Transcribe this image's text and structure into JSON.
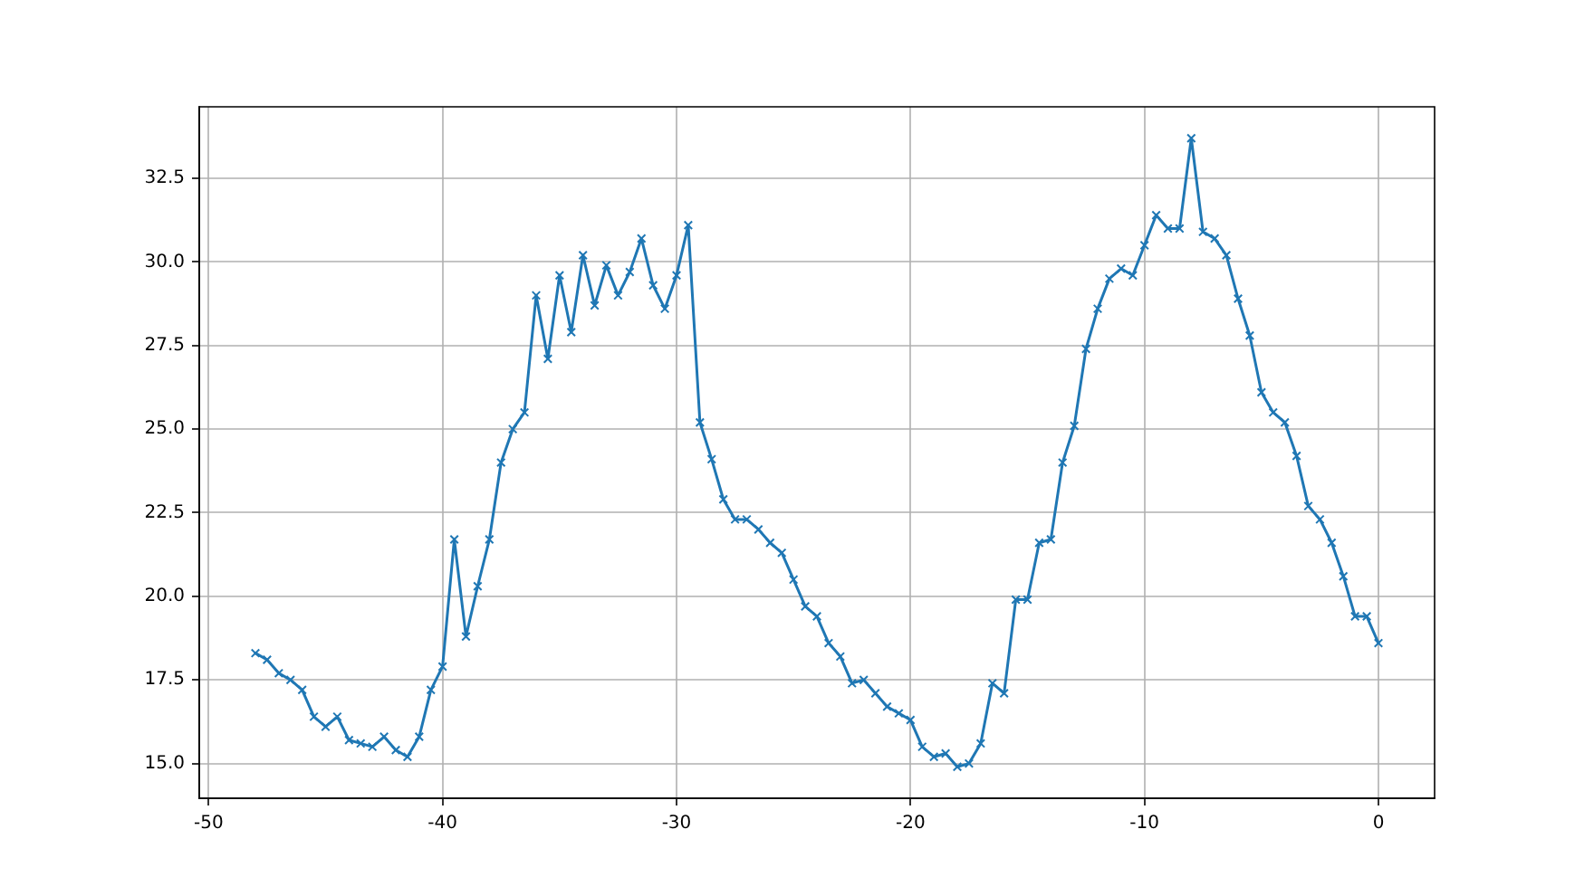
{
  "chart_data": {
    "type": "line",
    "x": [
      -48,
      -47.5,
      -47,
      -46.5,
      -46,
      -45.5,
      -45,
      -44.5,
      -44,
      -43.5,
      -43,
      -42.5,
      -42,
      -41.5,
      -41,
      -40.5,
      -40,
      -39.5,
      -39,
      -38.5,
      -38,
      -37.5,
      -37,
      -36.5,
      -36,
      -35.5,
      -35,
      -34.5,
      -34,
      -33.5,
      -33,
      -32.5,
      -32,
      -31.5,
      -31,
      -30.5,
      -30,
      -29.5,
      -29,
      -28.5,
      -28,
      -27.5,
      -27,
      -26.5,
      -26,
      -25.5,
      -25,
      -24.5,
      -24,
      -23.5,
      -23,
      -22.5,
      -22,
      -21.5,
      -21,
      -20.5,
      -20,
      -19.5,
      -19,
      -18.5,
      -18,
      -17.5,
      -17,
      -16.5,
      -16,
      -15.5,
      -15,
      -14.5,
      -14,
      -13.5,
      -13,
      -12.5,
      -12,
      -11.5,
      -11,
      -10.5,
      -10,
      -9.5,
      -9,
      -8.5,
      -8,
      -7.5,
      -7,
      -6.5,
      -6,
      -5.5,
      -5,
      -4.5,
      -4,
      -3.5,
      -3,
      -2.5,
      -2,
      -1.5,
      -1,
      -0.5,
      0
    ],
    "series": [
      {
        "color": "#1f77b4",
        "values": [
          18.3,
          18.1,
          17.7,
          17.5,
          17.2,
          16.4,
          16.1,
          16.4,
          15.7,
          15.6,
          15.5,
          15.8,
          15.4,
          15.2,
          15.8,
          17.2,
          17.9,
          21.7,
          18.8,
          20.3,
          21.7,
          24.0,
          25.0,
          25.5,
          29.0,
          27.1,
          29.6,
          27.9,
          30.2,
          28.7,
          29.9,
          29.0,
          29.7,
          30.7,
          29.3,
          28.6,
          29.6,
          31.1,
          25.2,
          24.1,
          22.9,
          22.3,
          22.3,
          22.0,
          21.6,
          21.3,
          20.5,
          19.7,
          19.4,
          18.6,
          18.2,
          17.4,
          17.5,
          17.1,
          16.7,
          16.5,
          16.3,
          15.5,
          15.2,
          15.3,
          14.9,
          15.0,
          15.6,
          17.4,
          17.1,
          19.9,
          19.9,
          21.6,
          21.7,
          24.0,
          25.1,
          27.4,
          28.6,
          29.5,
          29.8,
          29.6,
          30.5,
          31.4,
          31.0,
          31.0,
          33.7,
          30.9,
          30.7,
          30.2,
          28.9,
          27.8,
          26.1,
          25.5,
          25.2,
          24.2,
          22.7,
          22.3,
          21.6,
          20.6,
          19.4,
          19.4,
          18.6
        ]
      }
    ],
    "xlim": [
      -50.4,
      2.4
    ],
    "ylim": [
      13.96,
      34.64
    ],
    "xticks": [
      -50,
      -40,
      -30,
      -20,
      -10,
      0
    ],
    "yticks": [
      {
        "value": 15,
        "label": "15.0"
      },
      {
        "value": 17.5,
        "label": "17.5"
      },
      {
        "value": 20,
        "label": "20.0"
      },
      {
        "value": 22.5,
        "label": "22.5"
      },
      {
        "value": 25,
        "label": "25.0"
      },
      {
        "value": 27.5,
        "label": "27.5"
      },
      {
        "value": 30,
        "label": "30.0"
      },
      {
        "value": 32.5,
        "label": "32.5"
      }
    ],
    "grid": true,
    "marker": "cross",
    "line_style": "solid",
    "legend": false
  }
}
